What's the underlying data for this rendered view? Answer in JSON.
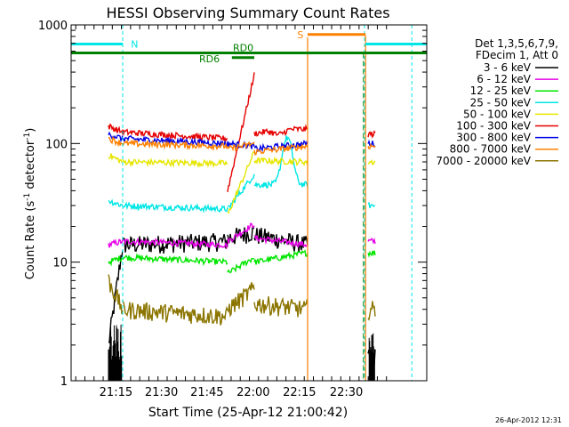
{
  "chart_data": {
    "type": "line",
    "title": "HESSI Observing Summary Count Rates",
    "xlabel": "Start Time (25-Apr-12 21:00:42)",
    "ylabel_main": "Count Rate (s",
    "ylabel_sup1": "-1",
    "ylabel_mid": " detector",
    "ylabel_sup2": "-1",
    "ylabel_end": ")",
    "y_scale": "log",
    "ylim": [
      1,
      1000
    ],
    "xlim": [
      0,
      100
    ],
    "x_tick_labels": [
      "21:15",
      "21:30",
      "21:45",
      "22:00",
      "22:15",
      "22:30"
    ],
    "y_tick_labels": [
      "1",
      "10",
      "100",
      "1000"
    ],
    "legend_header": [
      "Det 1,3,5,6,7,9,",
      "FDecim 1, Att 0"
    ],
    "legend_position": "right",
    "timestamp": "26-Apr-2012 12:31",
    "flags": {
      "night": "N",
      "saa": "S",
      "rd0": "RD0",
      "rd6": "RD6"
    },
    "series": [
      {
        "name": "3 - 6 keV",
        "color": "#000000",
        "values": [
          2.0,
          14,
          15,
          16,
          18,
          17,
          14,
          1.6
        ]
      },
      {
        "name": "6 - 12 keV",
        "color": "#e600e6",
        "values": [
          14,
          15,
          14,
          15,
          21,
          16,
          14,
          15
        ]
      },
      {
        "name": "12 - 25 keV",
        "color": "#00e600",
        "values": [
          10,
          11,
          10,
          8,
          11,
          10,
          12,
          12
        ]
      },
      {
        "name": "25 - 50 keV",
        "color": "#00e6e6",
        "values": [
          33,
          30,
          28,
          28,
          55,
          45,
          30,
          30
        ]
      },
      {
        "name": "50 - 100 keV",
        "color": "#e6e600",
        "values": [
          80,
          70,
          68,
          25,
          85,
          72,
          70,
          70
        ]
      },
      {
        "name": "100 - 300 keV",
        "color": "#e60000",
        "values": [
          140,
          125,
          110,
          40,
          380,
          90,
          120,
          120
        ]
      },
      {
        "name": "300 - 800 keV",
        "color": "#0000e6",
        "values": [
          120,
          110,
          100,
          100,
          95,
          90,
          100,
          100
        ]
      },
      {
        "name": "800 - 7000 keV",
        "color": "#ff8000",
        "values": [
          110,
          100,
          95,
          90,
          100,
          85,
          95,
          95
        ]
      },
      {
        "name": "7000 - 20000 keV",
        "color": "#8b7500",
        "values": [
          7,
          4,
          3.5,
          4,
          6,
          4.5,
          4,
          4
        ]
      }
    ]
  }
}
